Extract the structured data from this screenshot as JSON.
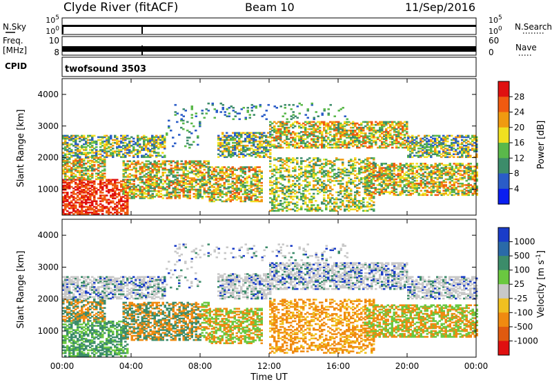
{
  "header": {
    "station": "Clyde River (fitACF)",
    "beam": "Beam 10",
    "date": "11/Sep/2016"
  },
  "strips": {
    "nsky_label": "N.Sky",
    "nsearch_label": "N.Search",
    "freq_label_top": "Freq.",
    "freq_label_bottom": "[MHz]",
    "nave_label": "Nave",
    "cpid_label": "CPID",
    "nsky_ticks": [
      "10^5",
      "10^0"
    ],
    "nsearch_ticks": [
      "10^5",
      "10^0"
    ],
    "freq_ticks": [
      "10",
      "8"
    ],
    "nave_ticks": [
      "60",
      "0"
    ],
    "cpid_value": "twofsound 3503"
  },
  "chart_data": [
    {
      "type": "heatmap",
      "name": "power-panel",
      "ylabel": "Slant Range [km]",
      "xlabel": "Time UT",
      "x_ticks": [
        "00:00",
        "04:00",
        "08:00",
        "12:00",
        "16:00",
        "20:00",
        "00:00"
      ],
      "x_range_hours": [
        0,
        24
      ],
      "y_ticks": [
        1000,
        2000,
        3000,
        4000
      ],
      "ylim": [
        180,
        4500
      ],
      "colorbar_label": "Power [dB]",
      "colorbar_ticks": [
        "4",
        "8",
        "12",
        "16",
        "20",
        "24",
        "28"
      ],
      "colorbar_colors": [
        "#0a1ef0",
        "#2a5cc8",
        "#3c8c6a",
        "#5ab84a",
        "#f0e020",
        "#f09a10",
        "#f05a10",
        "#e01010"
      ]
    },
    {
      "type": "heatmap",
      "name": "velocity-panel",
      "ylabel": "Slant Range [km]",
      "xlabel": "Time UT",
      "x_ticks": [
        "00:00",
        "04:00",
        "08:00",
        "12:00",
        "16:00",
        "20:00",
        "00:00"
      ],
      "x_range_hours": [
        0,
        24
      ],
      "y_ticks": [
        1000,
        2000,
        3000,
        4000
      ],
      "ylim": [
        180,
        4500
      ],
      "colorbar_label": "Velocity [m s^-1]",
      "colorbar_ticks": [
        "1000",
        "500",
        "100",
        "25",
        "-25",
        "-100",
        "-500",
        "-1000"
      ],
      "colorbar_colors": [
        "#1a3cc8",
        "#2a6aa8",
        "#3c8c6a",
        "#6ac840",
        "#c8c8c8",
        "#f0c020",
        "#f08a10",
        "#e05a10",
        "#e01010"
      ]
    }
  ]
}
